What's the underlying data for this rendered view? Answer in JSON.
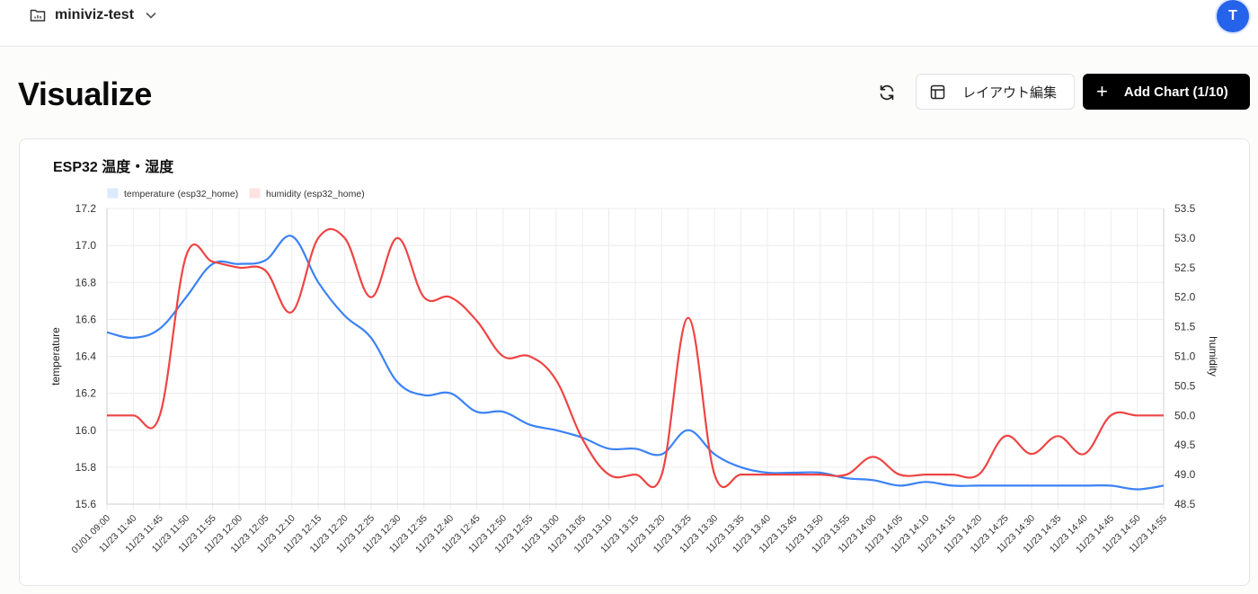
{
  "header": {
    "project_name": "miniviz-test",
    "avatar_initial": "T"
  },
  "page": {
    "title": "Visualize",
    "layout_button_label": "レイアウト編集",
    "add_chart_label": "Add Chart (1/10)"
  },
  "card": {
    "title": "ESP32 温度・湿度"
  },
  "colors": {
    "temperature": "#3b82f6",
    "humidity": "#ef4444",
    "temperature_legend_fill": "#dbeafe",
    "humidity_legend_fill": "#fee2e2",
    "avatar": "#2563eb"
  },
  "chart_data": {
    "type": "line",
    "x": [
      "01/01 09:00",
      "11/23 11:40",
      "11/23 11:45",
      "11/23 11:50",
      "11/23 11:55",
      "11/23 12:00",
      "11/23 12:05",
      "11/23 12:10",
      "11/23 12:15",
      "11/23 12:20",
      "11/23 12:25",
      "11/23 12:30",
      "11/23 12:35",
      "11/23 12:40",
      "11/23 12:45",
      "11/23 12:50",
      "11/23 12:55",
      "11/23 13:00",
      "11/23 13:05",
      "11/23 13:10",
      "11/23 13:15",
      "11/23 13:20",
      "11/23 13:25",
      "11/23 13:30",
      "11/23 13:35",
      "11/23 13:40",
      "11/23 13:45",
      "11/23 13:50",
      "11/23 13:55",
      "11/23 14:00",
      "11/23 14:05",
      "11/23 14:10",
      "11/23 14:15",
      "11/23 14:20",
      "11/23 14:25",
      "11/23 14:30",
      "11/23 14:35",
      "11/23 14:40",
      "11/23 14:45",
      "11/23 14:50",
      "11/23 14:55"
    ],
    "series": [
      {
        "name": "temperature (esp32_home)",
        "axis": "left",
        "values": [
          16.53,
          16.5,
          16.55,
          16.72,
          16.9,
          16.9,
          16.92,
          17.05,
          16.8,
          16.62,
          16.5,
          16.26,
          16.19,
          16.2,
          16.1,
          16.1,
          16.03,
          16.0,
          15.96,
          15.9,
          15.9,
          15.87,
          16.0,
          15.87,
          15.8,
          15.77,
          15.77,
          15.77,
          15.74,
          15.73,
          15.7,
          15.72,
          15.7,
          15.7,
          15.7,
          15.7,
          15.7,
          15.7,
          15.7,
          15.68,
          15.7
        ]
      },
      {
        "name": "humidity (esp32_home)",
        "axis": "right",
        "values": [
          50.0,
          50.0,
          50.0,
          52.7,
          52.6,
          52.5,
          52.45,
          51.75,
          53.0,
          53.0,
          52.0,
          53.0,
          52.0,
          52.0,
          51.6,
          51.0,
          51.0,
          50.6,
          49.6,
          49.0,
          49.0,
          49.0,
          51.65,
          49.0,
          49.0,
          49.0,
          49.0,
          49.0,
          49.0,
          49.3,
          49.0,
          49.0,
          49.0,
          49.0,
          49.65,
          49.35,
          49.65,
          49.35,
          50.0,
          50.0,
          50.0
        ]
      }
    ],
    "y_left": {
      "label": "temperature",
      "range": [
        15.6,
        17.2
      ],
      "ticks": [
        "15.6",
        "15.8",
        "16.0",
        "16.2",
        "16.4",
        "16.6",
        "16.8",
        "17.0",
        "17.2"
      ]
    },
    "y_right": {
      "label": "humidity",
      "range": [
        48.5,
        53.5
      ],
      "ticks": [
        "48.5",
        "49.0",
        "49.5",
        "50.0",
        "50.5",
        "51.0",
        "51.5",
        "52.0",
        "52.5",
        "53.0",
        "53.5"
      ]
    },
    "grid": true,
    "legend": "top-left"
  }
}
